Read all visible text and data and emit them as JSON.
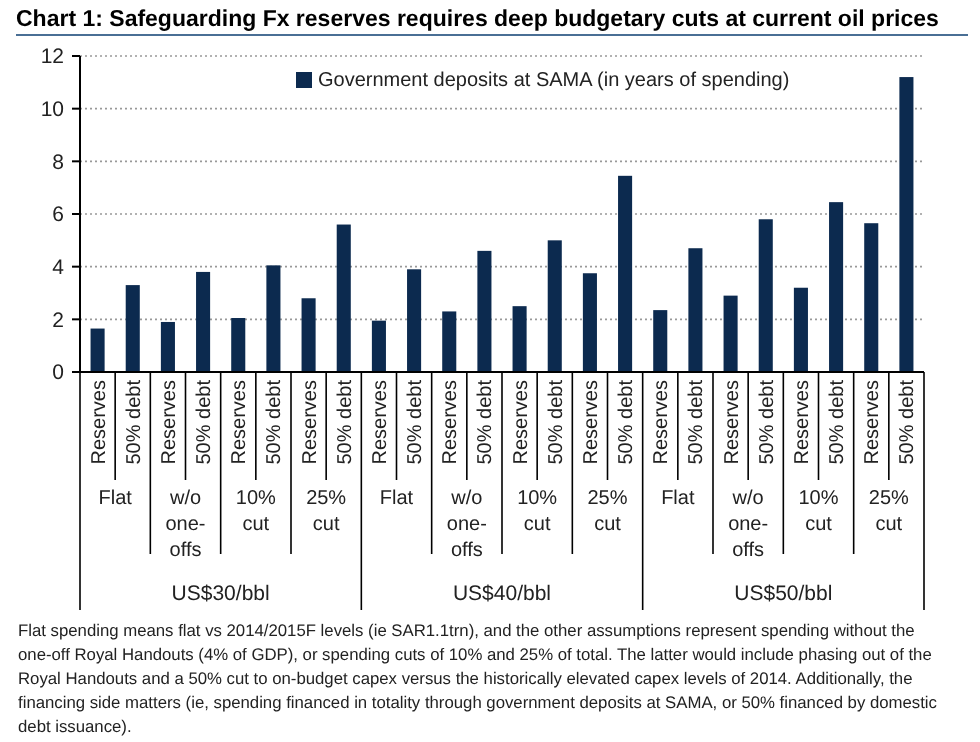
{
  "chart_data": {
    "type": "bar",
    "title": "Chart 1: Safeguarding Fx reserves requires deep budgetary cuts at current oil prices",
    "categories": [
      "Reserves",
      "50% debt",
      "Reserves",
      "50% debt",
      "Reserves",
      "50% debt",
      "Reserves",
      "50% debt",
      "Reserves",
      "50% debt",
      "Reserves",
      "50% debt",
      "Reserves",
      "50% debt",
      "Reserves",
      "50% debt",
      "Reserves",
      "50% debt",
      "Reserves",
      "50% debt",
      "Reserves",
      "50% debt",
      "Reserves",
      "50% debt"
    ],
    "series": [
      {
        "name": "Government deposits at SAMA (in years of spending)",
        "color": "#0c2a4f",
        "values": [
          1.65,
          3.3,
          1.9,
          3.8,
          2.05,
          4.05,
          2.8,
          5.6,
          1.95,
          3.9,
          2.3,
          4.6,
          2.5,
          5.0,
          3.75,
          7.45,
          2.35,
          4.7,
          2.9,
          5.8,
          3.2,
          6.45,
          5.65,
          11.2
        ]
      }
    ],
    "annotations": [
      "Flat",
      "w/o one-offs",
      "10% cut",
      "25% cut",
      "Flat",
      "w/o one-offs",
      "10% cut",
      "25% cut",
      "Flat",
      "w/o one-offs",
      "10% cut",
      "25% cut",
      "US$30/bbl",
      "US$40/bbl",
      "US$50/bbl",
      "Flat spending means flat vs 2014/2015F levels (ie SAR1.1trn), and the other assumptions represent spending without the one-off Royal Handouts (4% of GDP), or spending cuts of 10% and 25% of total. The latter would include phasing out of the Royal Handouts and a 50% cut to on-budget capex versus the historically elevated capex levels of 2014. Additionally, the financing side matters (ie, spending financed in totality through government deposits at SAMA, or 50% financed by domestic debt issuance)."
    ],
    "ylim": [
      0,
      12
    ],
    "yticks": [
      0,
      2,
      4,
      6,
      8,
      10,
      12
    ],
    "grid": "y",
    "legend": "top"
  }
}
